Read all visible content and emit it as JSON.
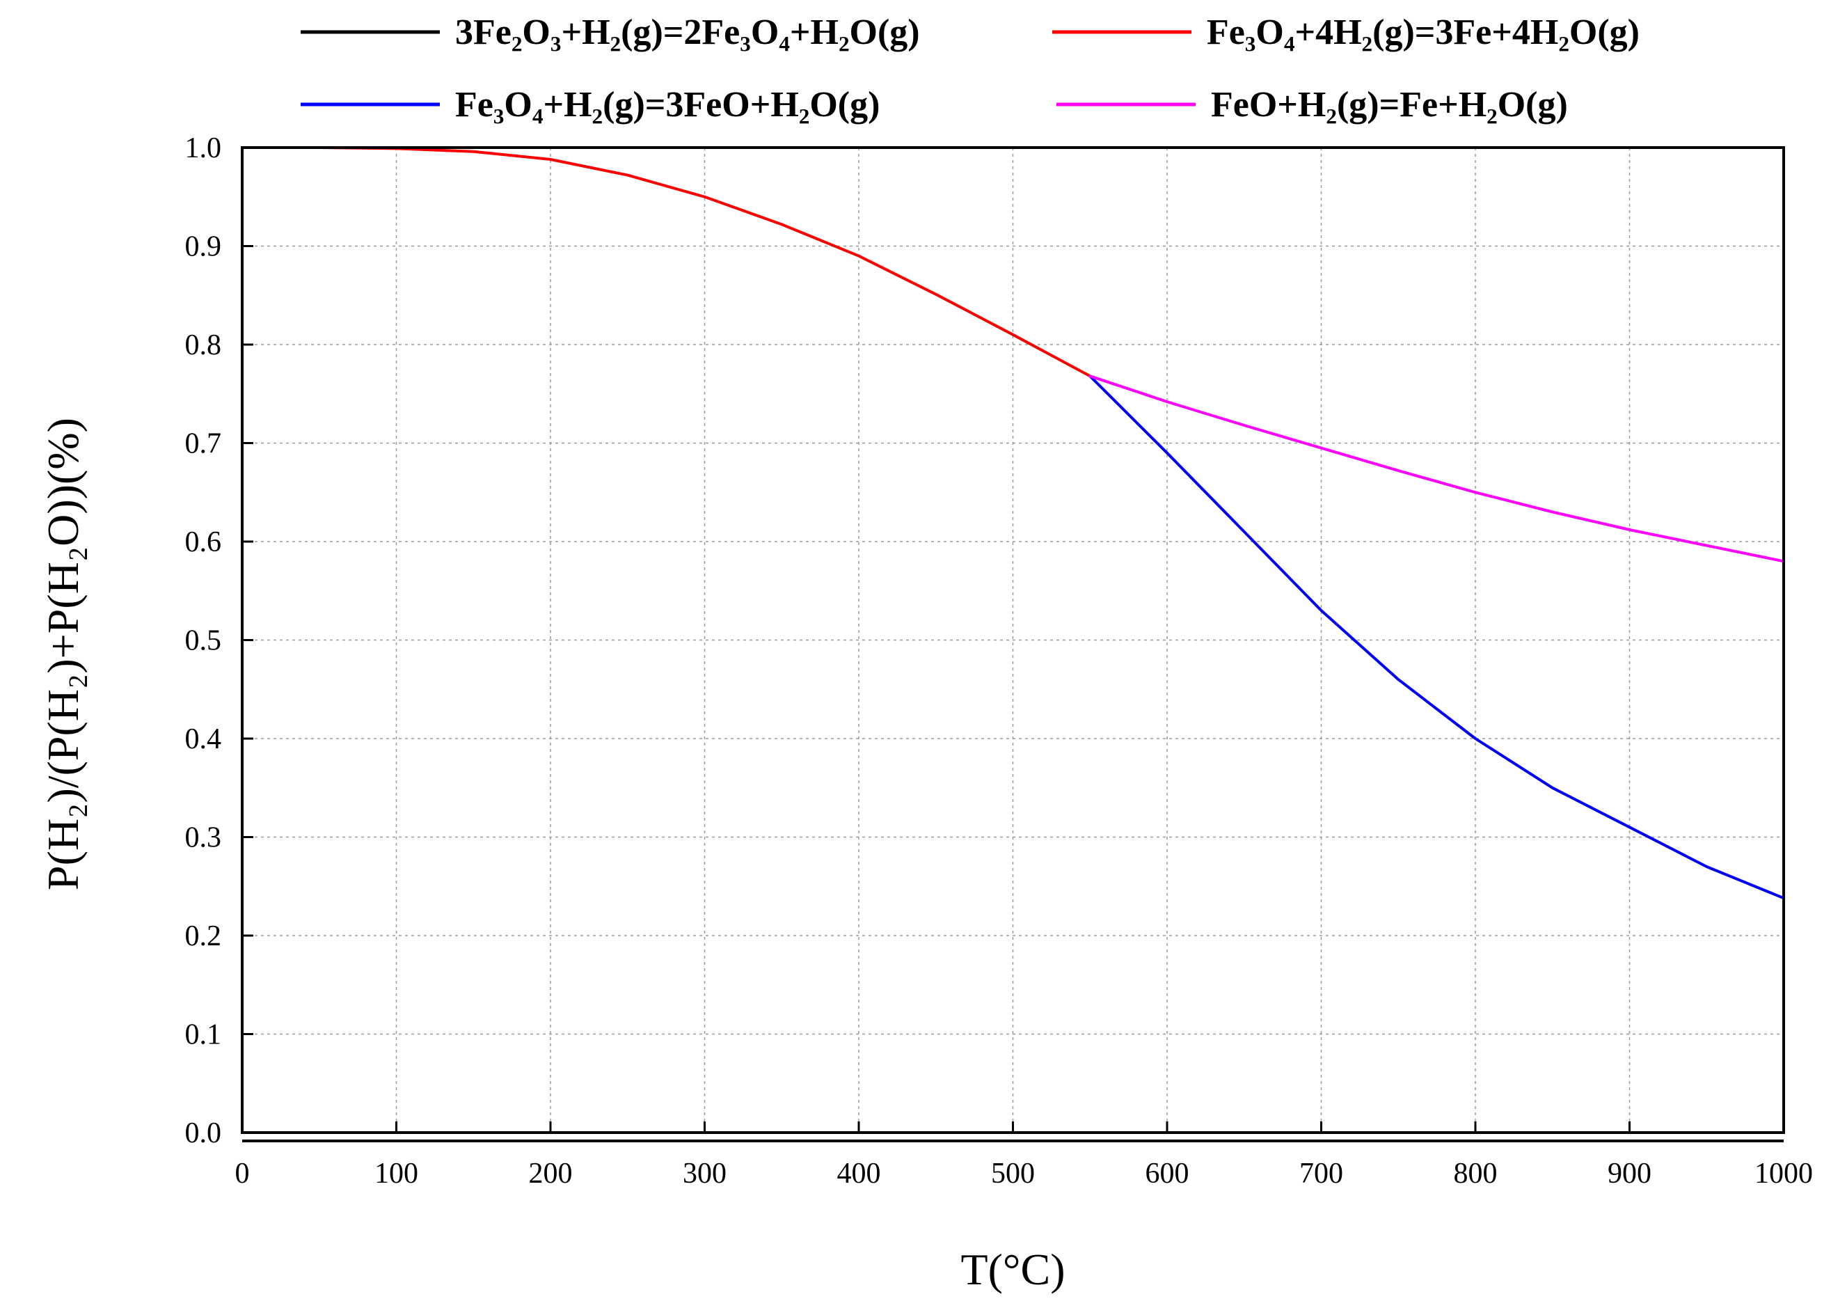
{
  "chart_data": {
    "type": "line",
    "title": "",
    "xlabel": "T(°C)",
    "ylabel": "P(H₂)/(P(H₂)+P(H₂O))(%)",
    "xlim": [
      0,
      1000
    ],
    "ylim": [
      0.0,
      1.0
    ],
    "x_ticks": [
      "0",
      "100",
      "200",
      "300",
      "400",
      "500",
      "600",
      "700",
      "800",
      "900",
      "1000"
    ],
    "y_ticks": [
      "0.0",
      "0.1",
      "0.2",
      "0.3",
      "0.4",
      "0.5",
      "0.6",
      "0.7",
      "0.8",
      "0.9",
      "1.0"
    ],
    "grid": true,
    "legend_position": "top",
    "series": [
      {
        "name": "3Fe₂O₃+H₂(g)=2Fe₃O₄+H₂O(g)",
        "color": "#000000",
        "x": [
          0,
          100,
          200,
          300,
          400,
          500,
          600,
          700,
          800,
          900,
          1000
        ],
        "y": [
          0.0,
          0.0,
          0.0,
          0.0,
          0.0,
          0.0,
          0.0,
          0.0,
          0.0,
          0.0,
          0.0
        ]
      },
      {
        "name": "Fe₃O₄+4H₂(g)=3Fe+4H₂O(g)",
        "color": "#ff0000",
        "x": [
          0,
          50,
          100,
          150,
          200,
          250,
          300,
          350,
          400,
          450,
          500,
          550
        ],
        "y": [
          1.0,
          1.0,
          0.999,
          0.996,
          0.988,
          0.972,
          0.95,
          0.922,
          0.89,
          0.851,
          0.81,
          0.768
        ]
      },
      {
        "name": "Fe₃O₄+H₂(g)=3FeO+H₂O(g)",
        "color": "#0000ff",
        "x": [
          550,
          600,
          650,
          700,
          750,
          800,
          850,
          900,
          950,
          1000
        ],
        "y": [
          0.768,
          0.69,
          0.61,
          0.53,
          0.46,
          0.4,
          0.35,
          0.31,
          0.27,
          0.238
        ]
      },
      {
        "name": "FeO+H₂(g)=Fe+H₂O(g)",
        "color": "#ff00ff",
        "x": [
          550,
          600,
          650,
          700,
          750,
          800,
          850,
          900,
          950,
          1000
        ],
        "y": [
          0.768,
          0.742,
          0.718,
          0.695,
          0.672,
          0.65,
          0.63,
          0.612,
          0.596,
          0.58
        ]
      }
    ]
  }
}
